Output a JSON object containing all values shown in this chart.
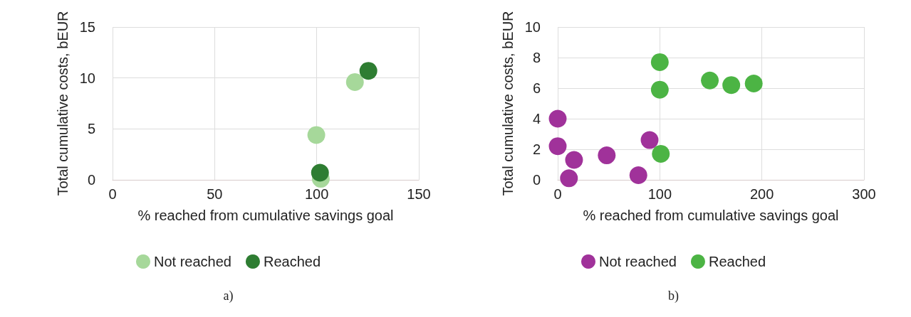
{
  "chart_data": [
    {
      "type": "scatter",
      "xlabel": "% reached from cumulative savings goal",
      "ylabel": "Total cumulative costs, bEUR",
      "xlim": [
        0,
        150
      ],
      "xticks": [
        0,
        50,
        100,
        150
      ],
      "ylim": [
        0,
        15
      ],
      "yticks": [
        0,
        5,
        10,
        15
      ],
      "grid": true,
      "legend": "bottom",
      "marker": "circle",
      "annotations": [
        "a)"
      ],
      "series": [
        {
          "name": "Not reached",
          "color": "#a6d89a",
          "x": [
            99.8,
            118.7,
            102
          ],
          "values": [
            4.4,
            9.6,
            0.1
          ]
        },
        {
          "name": "Reached",
          "color": "#2e7d32",
          "x": [
            125.3,
            101.6
          ],
          "values": [
            10.7,
            0.7
          ]
        }
      ]
    },
    {
      "type": "scatter",
      "xlabel": "% reached from cumulative savings goal",
      "ylabel": "Total cumulative costs, bEUR",
      "xlim": [
        0,
        300
      ],
      "xticks": [
        0,
        100,
        200,
        300
      ],
      "ylim": [
        0,
        10
      ],
      "yticks": [
        0,
        2,
        4,
        6,
        8,
        10
      ],
      "grid": true,
      "legend": "bottom",
      "marker": "circle",
      "annotations": [
        "b)"
      ],
      "series": [
        {
          "name": "Not reached",
          "color": "#a0329a",
          "x": [
            0,
            0,
            16,
            11,
            48,
            79,
            90
          ],
          "values": [
            4.0,
            2.2,
            1.3,
            0.1,
            1.6,
            0.3,
            2.6
          ]
        },
        {
          "name": "Reached",
          "color": "#4cb444",
          "x": [
            100,
            100,
            101,
            149,
            170,
            192
          ],
          "values": [
            7.7,
            5.9,
            1.7,
            6.5,
            6.2,
            6.3
          ]
        }
      ]
    }
  ]
}
